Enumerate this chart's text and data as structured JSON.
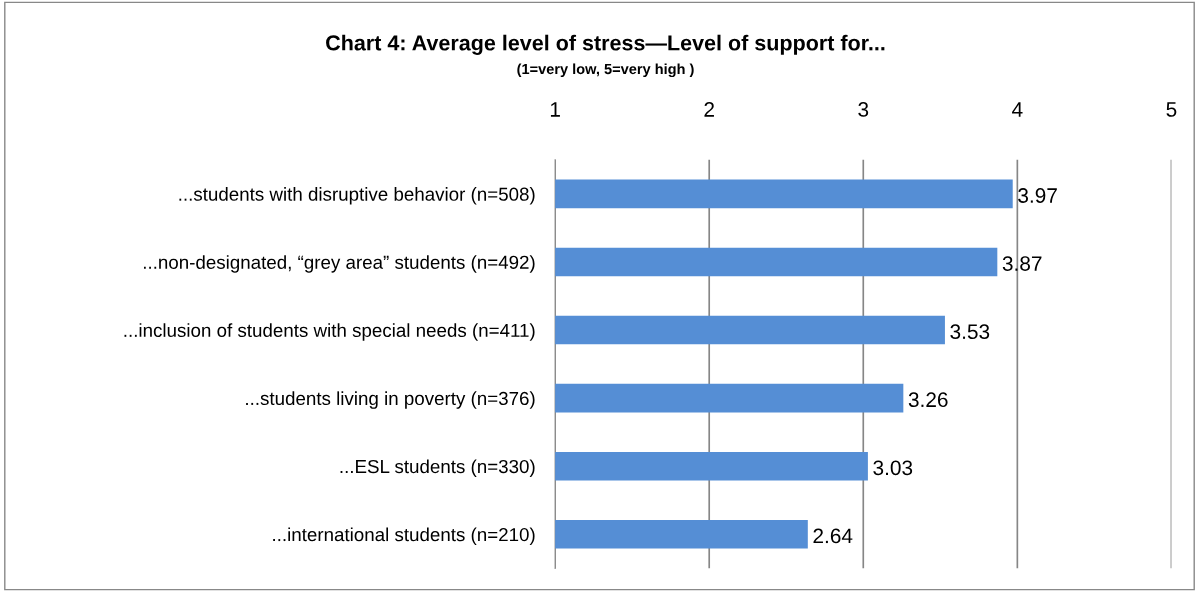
{
  "chart_data": {
    "type": "bar",
    "orientation": "horizontal",
    "title": "Chart 4: Average level of stress—Level of support for...",
    "subtitle": "(1=very low, 5=very high )",
    "categories": [
      "...students with disruptive behavior (n=508)",
      "...non-designated, “grey area” students (n=492)",
      "...inclusion of students with special needs (n=411)",
      "...students living in poverty (n=376)",
      "...ESL students (n=330)",
      "...international students (n=210)"
    ],
    "values": [
      3.97,
      3.87,
      3.53,
      3.26,
      3.03,
      2.64
    ],
    "color": "#558ed5",
    "xlim": [
      1,
      5
    ],
    "xticks": [
      1,
      2,
      3,
      4,
      5
    ],
    "grid": "x",
    "data_labels": true
  }
}
